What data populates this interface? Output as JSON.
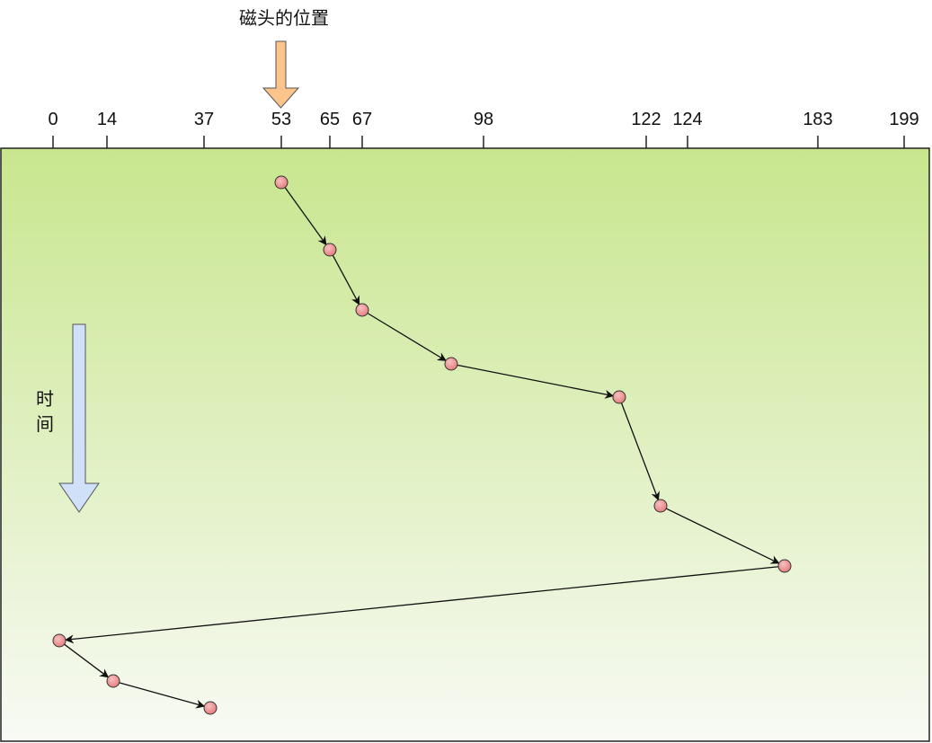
{
  "head_label": "磁头的位置",
  "time_label": "时间",
  "axis_ticks": [
    "0",
    "14",
    "37",
    "53",
    "65",
    "67",
    "98",
    "122",
    "124",
    "183",
    "199"
  ],
  "request_sequence": [
    53,
    65,
    67,
    98,
    122,
    124,
    183,
    0,
    14,
    37
  ],
  "colors": {
    "panel_top": "#c8e68e",
    "panel_bottom": "#f8faf4",
    "head_arrow": "#fbc48c",
    "time_arrow": "#cfe0f8",
    "point_fill": "#ee8a8a"
  }
}
